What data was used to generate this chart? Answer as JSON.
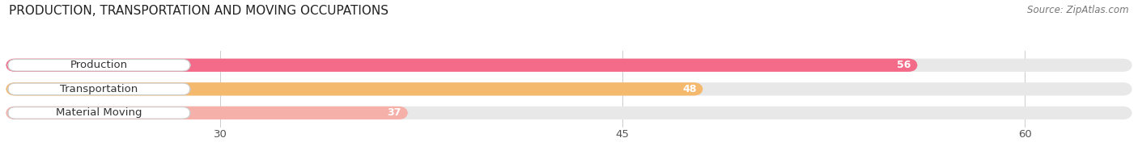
{
  "title": "PRODUCTION, TRANSPORTATION AND MOVING OCCUPATIONS",
  "source": "Source: ZipAtlas.com",
  "categories": [
    "Production",
    "Transportation",
    "Material Moving"
  ],
  "values": [
    56,
    48,
    37
  ],
  "bar_colors": [
    "#f46b8a",
    "#f5b96e",
    "#f5b0aa"
  ],
  "bg_bar_color": "#e8e8e8",
  "label_box_color": "#ffffff",
  "label_box_edge": "#cccccc",
  "xlim_min": 22,
  "xlim_max": 64,
  "xticks": [
    30,
    45,
    60
  ],
  "title_fontsize": 11,
  "label_fontsize": 9.5,
  "value_fontsize": 9,
  "source_fontsize": 8.5,
  "bar_height": 0.55,
  "bar_spacing": 1.0
}
